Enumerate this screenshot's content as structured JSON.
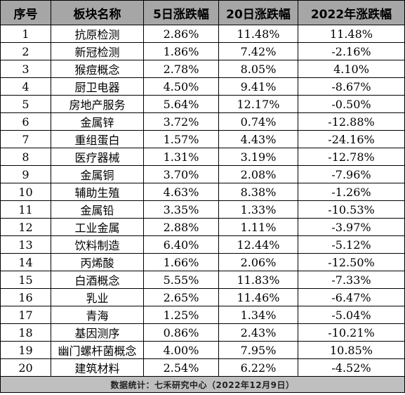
{
  "headers": [
    "序号",
    "板块名称",
    "5日涨跌幅",
    "20日涨跌幅",
    "2022年涨跌幅"
  ],
  "rows": [
    [
      "1",
      "抗原检测",
      "2.86%",
      "11.48%",
      "11.48%"
    ],
    [
      "2",
      "新冠检测",
      "1.86%",
      "7.42%",
      "-2.16%"
    ],
    [
      "3",
      "猴痘概念",
      "2.78%",
      "8.05%",
      "4.10%"
    ],
    [
      "4",
      "厨卫电器",
      "4.50%",
      "9.41%",
      "-8.67%"
    ],
    [
      "5",
      "房地产服务",
      "5.64%",
      "12.17%",
      "-0.50%"
    ],
    [
      "6",
      "金属锌",
      "3.72%",
      "0.74%",
      "-12.88%"
    ],
    [
      "7",
      "重组蛋白",
      "1.57%",
      "4.43%",
      "-24.16%"
    ],
    [
      "8",
      "医疗器械",
      "1.31%",
      "3.19%",
      "-12.78%"
    ],
    [
      "9",
      "金属铜",
      "3.70%",
      "2.08%",
      "-7.96%"
    ],
    [
      "10",
      "辅助生殖",
      "4.63%",
      "8.38%",
      "-1.26%"
    ],
    [
      "11",
      "金属铅",
      "3.35%",
      "1.33%",
      "-10.53%"
    ],
    [
      "12",
      "工业金属",
      "2.88%",
      "1.11%",
      "-3.97%"
    ],
    [
      "13",
      "饮料制造",
      "6.40%",
      "12.44%",
      "-5.12%"
    ],
    [
      "14",
      "丙烯酸",
      "1.66%",
      "2.06%",
      "-12.50%"
    ],
    [
      "15",
      "白酒概念",
      "5.55%",
      "11.83%",
      "-7.33%"
    ],
    [
      "16",
      "乳业",
      "2.65%",
      "11.46%",
      "-6.47%"
    ],
    [
      "17",
      "青海",
      "1.25%",
      "1.34%",
      "-5.04%"
    ],
    [
      "18",
      "基因测序",
      "0.86%",
      "2.43%",
      "-10.21%"
    ],
    [
      "19",
      "幽门螺杆菌概念",
      "4.00%",
      "7.95%",
      "10.85%"
    ],
    [
      "20",
      "建筑材料",
      "2.54%",
      "6.22%",
      "-4.52%"
    ]
  ],
  "footer": "数据统计：七禾研究中心（2022年12月9日）",
  "colors": {
    "header_bg": "#a6a6a6",
    "footer_bg": "#bfbfbf",
    "border": "#000000"
  }
}
